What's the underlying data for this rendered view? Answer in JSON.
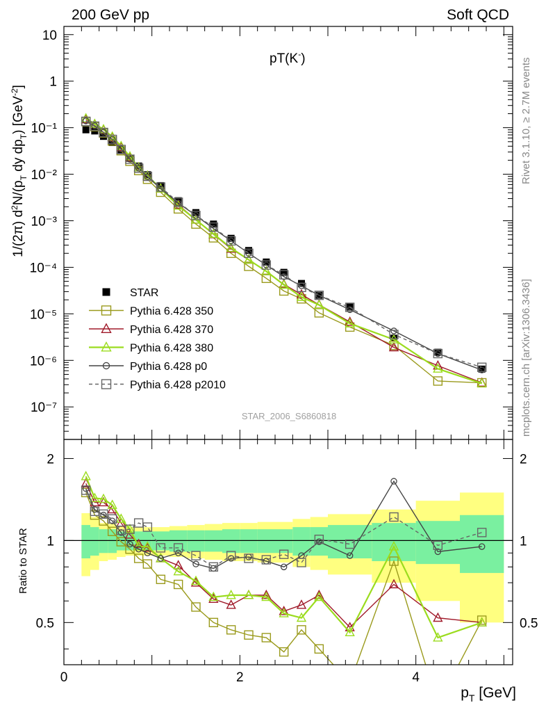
{
  "header": {
    "left": "200 GeV pp",
    "right": "Soft QCD"
  },
  "plot_title": "pT(K",
  "plot_title_sup": "-",
  "plot_title_close": ")",
  "side_text": {
    "top": "Rivet 3.1.10, ≥ 2.7M events",
    "bottom": "mcplots.cern.ch [arXiv:1306.3436]"
  },
  "watermark": "STAR_2006_S6860818",
  "chart_data": [
    {
      "type": "line",
      "log_y": true,
      "ylabel": "1/(2π) d²N/(p_T dy dp_T) [GeV⁻²]",
      "ylim": [
        2e-08,
        15
      ],
      "xlim": [
        0,
        5.1
      ],
      "y_tick_labels": [
        "10⁻⁷",
        "10⁻⁶",
        "10⁻⁵",
        "10⁻⁴",
        "10⁻³",
        "10⁻²",
        "10⁻¹",
        "1",
        "10"
      ],
      "x": [
        0.25,
        0.35,
        0.45,
        0.55,
        0.65,
        0.75,
        0.85,
        0.95,
        1.1,
        1.3,
        1.5,
        1.7,
        1.9,
        2.1,
        2.3,
        2.5,
        2.7,
        2.9,
        3.25,
        3.75,
        4.25,
        4.75
      ],
      "series": [
        {
          "name": "STAR",
          "color": "#000000",
          "marker": "filled-square",
          "values": [
            0.09,
            0.085,
            0.065,
            0.048,
            0.033,
            0.022,
            0.015,
            0.0098,
            0.0057,
            0.0027,
            0.0015,
            0.00085,
            0.00042,
            0.00023,
            0.00013,
            7.8e-05,
            4.5e-05,
            2.5e-05,
            1.4e-05,
            3e-06,
            1.5e-06,
            6.5e-07
          ]
        },
        {
          "name": "Pythia 6.428 350",
          "color": "#9a9a1c",
          "marker": "open-square",
          "values": [
            0.135,
            0.105,
            0.077,
            0.052,
            0.032,
            0.019,
            0.012,
            0.0078,
            0.0041,
            0.0018,
            0.00085,
            0.00043,
            0.0002,
            0.000105,
            5.8e-05,
            3.1e-05,
            2.1e-05,
            1.05e-05,
            5.2e-06,
            2.1e-06,
            3.6e-07,
            3.3e-07
          ]
        },
        {
          "name": "Pythia 6.428 370",
          "color": "#a01a2a",
          "marker": "open-triangle",
          "values": [
            0.15,
            0.118,
            0.09,
            0.062,
            0.038,
            0.023,
            0.014,
            0.0092,
            0.0049,
            0.0022,
            0.00105,
            0.00051,
            0.00025,
            0.000145,
            8.2e-05,
            4.3e-05,
            2.6e-05,
            1.57e-05,
            6.7e-06,
            1.9e-06,
            7.7e-07,
            3.3e-07
          ]
        },
        {
          "name": "Pythia 6.428 380",
          "color": "#9bdc1e",
          "marker": "open-triangle",
          "values": [
            0.158,
            0.12,
            0.092,
            0.064,
            0.04,
            0.024,
            0.014,
            0.0093,
            0.0049,
            0.0021,
            0.00105,
            0.00052,
            0.00026,
            0.000145,
            8.2e-05,
            4.2e-05,
            2.3e-05,
            1.55e-05,
            6.2e-06,
            2.8e-06,
            6.6e-07,
            3.2e-07
          ]
        },
        {
          "name": "Pythia 6.428 p0",
          "color": "#444444",
          "marker": "open-circle",
          "values": [
            0.14,
            0.11,
            0.08,
            0.056,
            0.035,
            0.021,
            0.0135,
            0.0088,
            0.0049,
            0.0024,
            0.0013,
            0.00068,
            0.00037,
            0.0002,
            0.000112,
            6.3e-05,
            4e-05,
            2.5e-05,
            1.23e-05,
            4.3e-06,
            1.4e-06,
            6.2e-07
          ]
        },
        {
          "name": "Pythia 6.428 p2010",
          "color": "#666666",
          "marker": "open-square",
          "dashed": true,
          "values": [
            0.137,
            0.108,
            0.079,
            0.056,
            0.034,
            0.021,
            0.0135,
            0.009,
            0.0053,
            0.0025,
            0.0013,
            0.00073,
            0.00037,
            0.0002,
            0.000112,
            6.9e-05,
            3.7e-05,
            2.5e-05,
            1.38e-05,
            3.6e-06,
            1.4e-06,
            7.1e-07
          ]
        }
      ]
    },
    {
      "type": "line",
      "xlabel": "p_T [GeV]",
      "ylabel": "Ratio to STAR",
      "ylim": [
        0.35,
        2.35
      ],
      "xlim": [
        0,
        5.1
      ],
      "x_tick_labels": [
        "0",
        "2",
        "4"
      ],
      "y_tick_labels": [
        "0.5",
        "1",
        "2"
      ],
      "x": [
        0.25,
        0.35,
        0.45,
        0.55,
        0.65,
        0.75,
        0.85,
        0.95,
        1.1,
        1.3,
        1.5,
        1.7,
        1.9,
        2.1,
        2.3,
        2.5,
        2.7,
        2.9,
        3.25,
        3.75,
        4.25,
        4.75
      ],
      "band_edges": [
        0.2,
        0.3,
        0.4,
        0.5,
        0.6,
        0.7,
        0.8,
        0.9,
        1.0,
        1.2,
        1.4,
        1.6,
        1.8,
        2.0,
        2.2,
        2.4,
        2.6,
        2.8,
        3.0,
        3.5,
        4.0,
        4.5,
        5.0
      ],
      "band_stat": [
        0.14,
        0.12,
        0.1,
        0.1,
        0.08,
        0.08,
        0.08,
        0.08,
        0.08,
        0.09,
        0.09,
        0.09,
        0.1,
        0.1,
        0.1,
        0.1,
        0.12,
        0.12,
        0.14,
        0.16,
        0.18,
        0.24,
        0.22
      ],
      "band_total": [
        0.26,
        0.22,
        0.16,
        0.15,
        0.13,
        0.12,
        0.12,
        0.12,
        0.12,
        0.13,
        0.14,
        0.15,
        0.16,
        0.16,
        0.17,
        0.17,
        0.2,
        0.22,
        0.25,
        0.3,
        0.4,
        0.5,
        0.48
      ],
      "series": [
        {
          "name": "Pythia 6.428 350",
          "values": [
            1.5,
            1.24,
            1.18,
            1.08,
            0.99,
            0.93,
            0.86,
            0.82,
            0.72,
            0.69,
            0.57,
            0.5,
            0.47,
            0.45,
            0.44,
            0.39,
            0.47,
            0.4,
            0.3,
            0.84,
            0.25,
            0.51
          ]
        },
        {
          "name": "Pythia 6.428 370",
          "values": [
            1.62,
            1.38,
            1.38,
            1.3,
            1.16,
            1.05,
            0.97,
            0.94,
            0.86,
            0.81,
            0.7,
            0.61,
            0.58,
            0.63,
            0.63,
            0.55,
            0.58,
            0.63,
            0.48,
            0.69,
            0.52,
            0.5
          ]
        },
        {
          "name": "Pythia 6.428 380",
          "values": [
            1.72,
            1.43,
            1.42,
            1.35,
            1.2,
            1.1,
            0.95,
            0.95,
            0.86,
            0.77,
            0.71,
            0.62,
            0.63,
            0.63,
            0.62,
            0.54,
            0.52,
            0.62,
            0.46,
            0.95,
            0.44,
            0.5
          ]
        },
        {
          "name": "Pythia 6.428 p0",
          "values": [
            1.55,
            1.3,
            1.24,
            1.18,
            1.07,
            0.97,
            0.93,
            0.9,
            0.86,
            0.9,
            0.82,
            0.79,
            0.86,
            0.87,
            0.84,
            0.8,
            0.88,
            0.99,
            0.88,
            1.65,
            0.91,
            0.95
          ]
        },
        {
          "name": "Pythia 6.428 p2010",
          "values": [
            1.53,
            1.28,
            1.25,
            1.2,
            1.09,
            1.1,
            1.16,
            1.12,
            0.94,
            0.94,
            0.88,
            0.8,
            0.88,
            0.86,
            0.85,
            0.89,
            0.83,
            1.01,
            0.97,
            1.22,
            0.96,
            1.07
          ]
        }
      ]
    }
  ]
}
